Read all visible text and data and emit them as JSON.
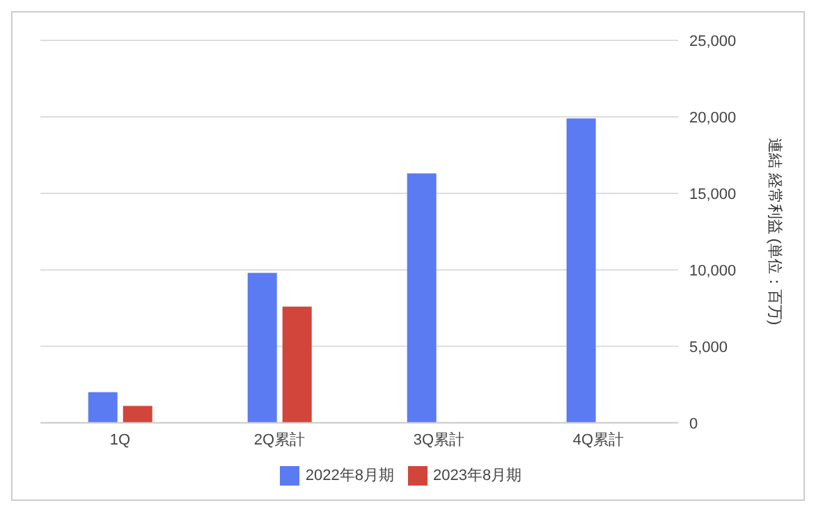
{
  "chart_data": {
    "type": "bar",
    "ylabel": "連結 経常利益 (単位：百万)",
    "categories": [
      "1Q",
      "2Q累計",
      "3Q累計",
      "4Q累計"
    ],
    "series": [
      {
        "name": "2022年8月期",
        "color": "#5b7bf3",
        "values": [
          2000,
          9800,
          16300,
          19900
        ]
      },
      {
        "name": "2023年8月期",
        "color": "#d2453b",
        "values": [
          1100,
          7600,
          null,
          null
        ]
      }
    ],
    "ylim": [
      0,
      25000
    ],
    "yticks": [
      0,
      {
        "value": 5000,
        "label": "5,000"
      },
      {
        "value": 10000,
        "label": "10,000"
      },
      {
        "value": 15000,
        "label": "15,000"
      },
      {
        "value": 20000,
        "label": "20,000"
      },
      {
        "value": 25000,
        "label": "25,000"
      }
    ],
    "grid": "y",
    "legend": "bottom"
  }
}
